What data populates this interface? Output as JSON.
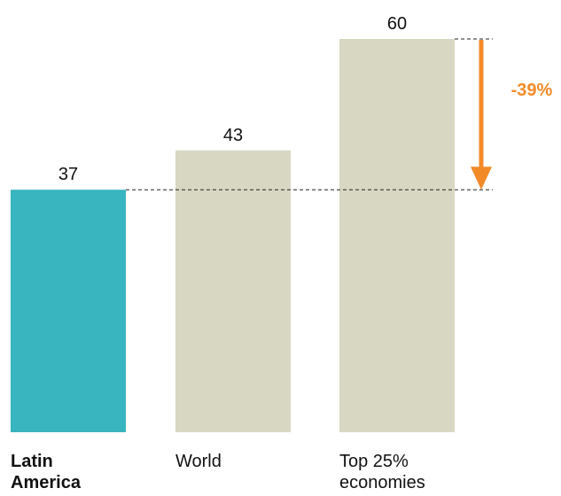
{
  "chart_data": {
    "type": "bar",
    "categories": [
      "Latin America",
      "World",
      "Top 25% economies"
    ],
    "category_label_lines": [
      [
        "Latin",
        "America"
      ],
      [
        "World"
      ],
      [
        "Top 25%",
        "economies"
      ]
    ],
    "values": [
      37,
      43,
      60
    ],
    "value_labels": [
      "37",
      "43",
      "60"
    ],
    "highlight_index": 0,
    "ylim": [
      0,
      60
    ],
    "grid": false,
    "title": "",
    "xlabel": "",
    "ylabel": "",
    "annotation": {
      "text": "-39%",
      "from_value": 60,
      "to_value": 37
    },
    "colors": {
      "highlight": "#38B5BE",
      "other": "#D8D7C2",
      "annotation": "#F28A27",
      "reference_line": "#222222"
    }
  }
}
